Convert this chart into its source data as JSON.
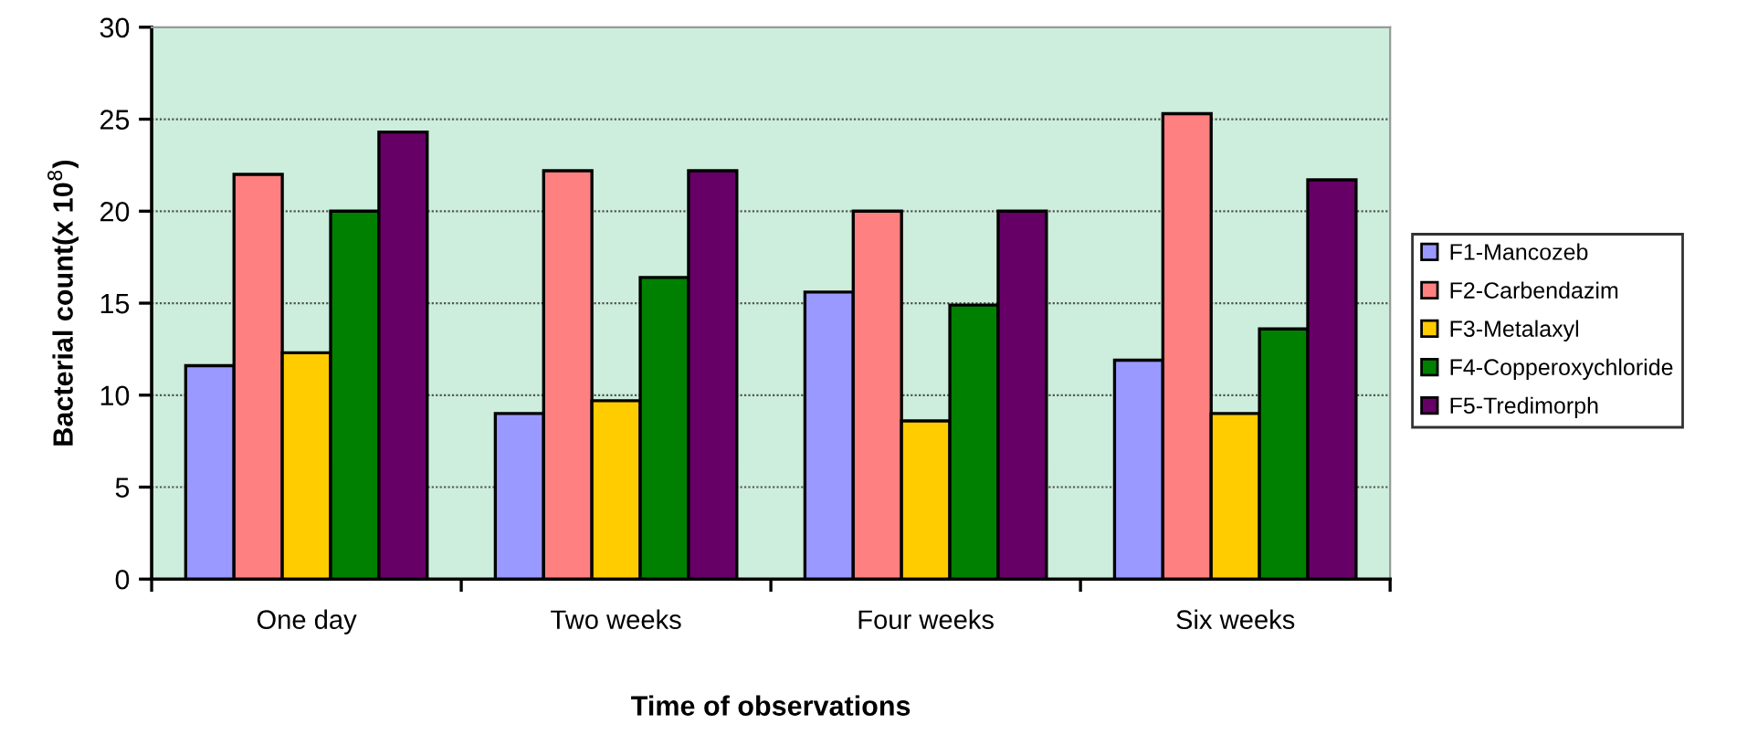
{
  "chart_data": {
    "type": "bar",
    "xlabel": "Time of observations",
    "ylabel": "Bacterial count(x 10$^{8}$)",
    "categories": [
      "One day",
      "Two weeks",
      "Four weeks",
      "Six weeks"
    ],
    "series": [
      {
        "name": "F1-Mancozeb",
        "color": "#9999ff",
        "values": [
          11.6,
          9.0,
          15.6,
          11.9
        ]
      },
      {
        "name": "F2-Carbendazim",
        "color": "#ff8080",
        "values": [
          22.0,
          22.2,
          20.0,
          25.3
        ]
      },
      {
        "name": "F3-Metalaxyl",
        "color": "#ffcc00",
        "values": [
          12.3,
          9.7,
          8.6,
          9.0
        ]
      },
      {
        "name": "F4-Copperoxychloride",
        "color": "#008000",
        "values": [
          20.0,
          16.4,
          14.9,
          13.6
        ]
      },
      {
        "name": "F5-Tredimorph",
        "color": "#660066",
        "values": [
          24.3,
          22.2,
          20.0,
          21.7
        ]
      }
    ],
    "ylim": [
      0,
      30
    ],
    "yticks": [
      0,
      5,
      10,
      15,
      20,
      25,
      30
    ],
    "grid": "y",
    "legend": "right"
  }
}
